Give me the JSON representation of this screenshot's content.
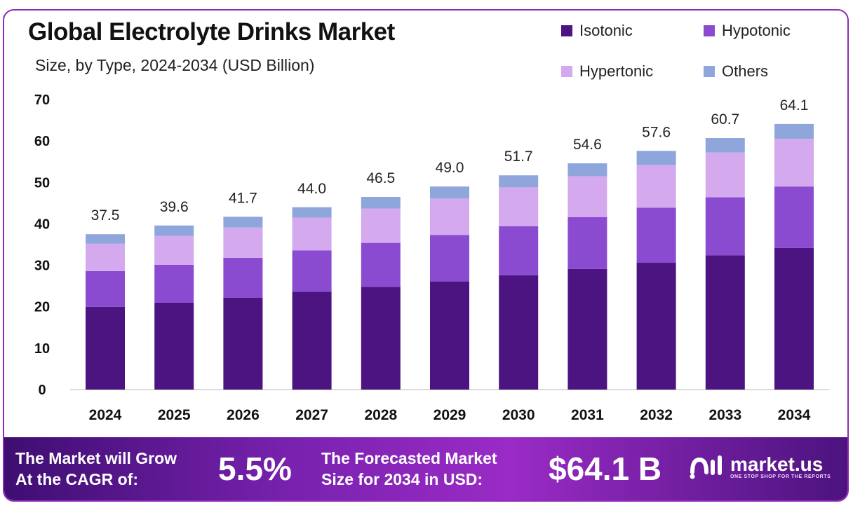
{
  "chart_data": {
    "type": "bar",
    "stacked": true,
    "title": "Global Electrolyte Drinks Market",
    "subtitle": "Size, by Type, 2024-2034 (USD Billion)",
    "categories": [
      "2024",
      "2025",
      "2026",
      "2027",
      "2028",
      "2029",
      "2030",
      "2031",
      "2032",
      "2033",
      "2034"
    ],
    "series": [
      {
        "name": "Isotonic",
        "color": "#4b1480",
        "values": [
          20.0,
          21.0,
          22.2,
          23.6,
          24.8,
          26.1,
          27.6,
          29.1,
          30.6,
          32.4,
          34.2
        ]
      },
      {
        "name": "Hypotonic",
        "color": "#8a4bd0",
        "values": [
          8.6,
          9.1,
          9.6,
          10.0,
          10.6,
          11.2,
          11.8,
          12.5,
          13.3,
          14.0,
          14.8
        ]
      },
      {
        "name": "Hypertonic",
        "color": "#d4a9ee",
        "values": [
          6.6,
          7.0,
          7.3,
          7.9,
          8.3,
          8.8,
          9.4,
          9.9,
          10.3,
          10.8,
          11.5
        ]
      },
      {
        "name": "Others",
        "color": "#8fa6dd",
        "values": [
          2.3,
          2.5,
          2.6,
          2.5,
          2.8,
          2.9,
          2.9,
          3.1,
          3.4,
          3.5,
          3.6
        ]
      }
    ],
    "totals": [
      "37.5",
      "39.6",
      "41.7",
      "44.0",
      "46.5",
      "49.0",
      "51.7",
      "54.6",
      "57.6",
      "60.7",
      "64.1"
    ],
    "yticks": [
      "0",
      "10",
      "20",
      "30",
      "40",
      "50",
      "60",
      "70"
    ],
    "ylim": [
      0,
      70
    ],
    "grid": false,
    "legend_position": "top-right"
  },
  "footer": {
    "cagr_line1": "The Market will Grow",
    "cagr_line2": "At the CAGR of:",
    "cagr_value": "5.5%",
    "forecast_line1": "The Forecasted Market",
    "forecast_line2": "Size for 2034 in USD:",
    "forecast_value": "$64.1 B",
    "logo_name": "market.us",
    "logo_tagline": "ONE STOP SHOP FOR THE REPORTS"
  }
}
